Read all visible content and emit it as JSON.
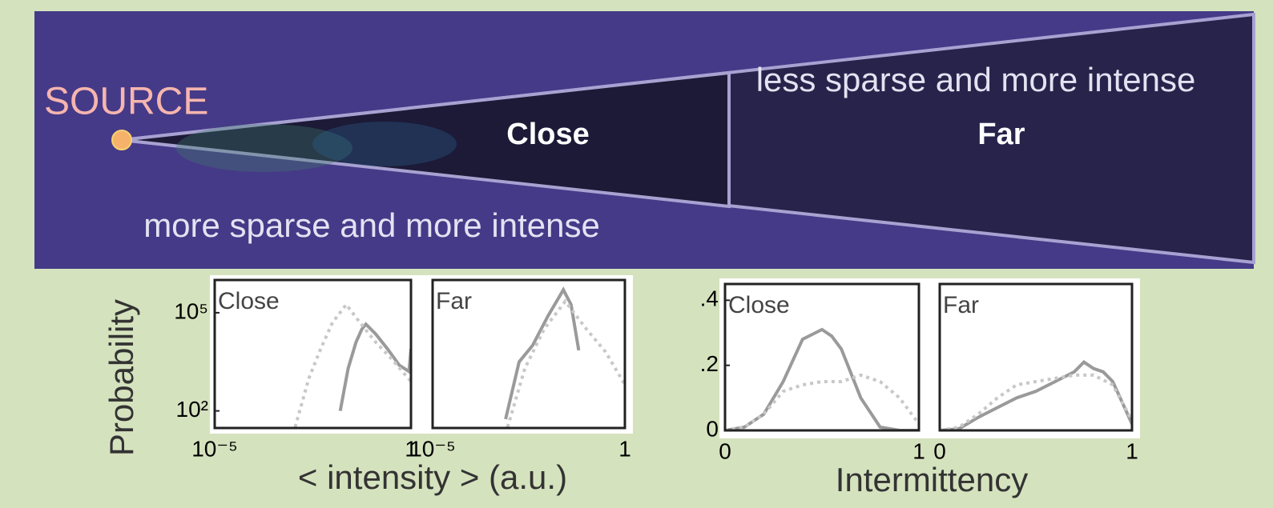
{
  "diagram": {
    "source": "SOURCE",
    "close": "Close",
    "far": "Far",
    "far_note": "less sparse and more intense",
    "near_note": "more sparse and more intense"
  },
  "chart_data": [
    {
      "type": "line",
      "title": "Close",
      "xlog": true,
      "ylog": true,
      "ylabel": "Probability",
      "xlabel": "< intensity > (a.u.)",
      "xlim": [
        1e-05,
        1
      ],
      "ylim": [
        30,
        1000000
      ],
      "xticks": [
        {
          "value": 1e-05,
          "label": "10⁻⁵"
        },
        1
      ],
      "yticks": [
        {
          "value": 100,
          "label": "10²"
        },
        {
          "value": 100000,
          "label": "10⁵"
        }
      ],
      "series": [
        {
          "color": "#9a9a9a",
          "dash": "solid",
          "x": [
            0.0158,
            0.0251,
            0.0398,
            0.0562,
            0.0708,
            0.126,
            0.251,
            0.501,
            0.891,
            1
          ],
          "values": [
            100,
            2000,
            12600,
            31600,
            44700,
            22400,
            7900,
            2500,
            1600,
            7900
          ]
        },
        {
          "color": "#c8c8c8",
          "dash": "dotted",
          "x": [
            0.00112,
            0.00251,
            0.00501,
            0.01,
            0.0224,
            0.0501,
            0.126,
            0.316,
            1
          ],
          "values": [
            32,
            1000,
            7900,
            50100,
            178000,
            50100,
            12600,
            3980,
            794
          ]
        }
      ]
    },
    {
      "type": "line",
      "title": "Far",
      "xlog": true,
      "ylog": true,
      "xlim": [
        1e-05,
        1
      ],
      "ylim": [
        30,
        1000000
      ],
      "xticks": [
        {
          "value": 1e-05,
          "label": "10⁻⁵"
        },
        1
      ],
      "series": [
        {
          "color": "#9a9a9a",
          "dash": "solid",
          "x": [
            0.00079,
            0.00178,
            0.00398,
            0.01,
            0.0251,
            0.0398,
            0.0631
          ],
          "values": [
            56,
            3160,
            10000,
            79400,
            501000,
            178000,
            7080
          ]
        },
        {
          "color": "#c8c8c8",
          "dash": "dotted",
          "x": [
            0.00089,
            0.00251,
            0.00794,
            0.0282,
            0.1,
            0.316,
            1
          ],
          "values": [
            32,
            2000,
            31600,
            224000,
            31600,
            6310,
            631
          ]
        }
      ]
    },
    {
      "type": "line",
      "title": "Close",
      "xlabel": "Intermittency",
      "xlim": [
        0,
        1
      ],
      "ylim": [
        0,
        0.45
      ],
      "xticks": [
        0,
        1
      ],
      "yticks": [
        0,
        {
          "value": 0.2,
          "label": ".2"
        },
        {
          "value": 0.4,
          "label": ".4"
        }
      ],
      "series": [
        {
          "color": "#9a9a9a",
          "dash": "solid",
          "x": [
            0,
            0.1,
            0.2,
            0.3,
            0.4,
            0.5,
            0.55,
            0.6,
            0.7,
            0.8,
            0.9,
            1
          ],
          "values": [
            0,
            0.01,
            0.05,
            0.15,
            0.28,
            0.31,
            0.29,
            0.25,
            0.1,
            0.01,
            0,
            0
          ]
        },
        {
          "color": "#c8c8c8",
          "dash": "dotted",
          "x": [
            0,
            0.1,
            0.2,
            0.3,
            0.4,
            0.5,
            0.6,
            0.7,
            0.8,
            0.9,
            1
          ],
          "values": [
            0,
            0.01,
            0.05,
            0.12,
            0.14,
            0.15,
            0.15,
            0.17,
            0.15,
            0.1,
            0.02
          ]
        }
      ]
    },
    {
      "type": "line",
      "title": "Far",
      "xlim": [
        0,
        1
      ],
      "ylim": [
        0,
        0.45
      ],
      "xticks": [
        0,
        1
      ],
      "series": [
        {
          "color": "#9a9a9a",
          "dash": "solid",
          "x": [
            0,
            0.1,
            0.2,
            0.3,
            0.4,
            0.5,
            0.6,
            0.7,
            0.75,
            0.8,
            0.85,
            0.9,
            1
          ],
          "values": [
            0,
            0.005,
            0.04,
            0.07,
            0.1,
            0.12,
            0.15,
            0.18,
            0.21,
            0.19,
            0.18,
            0.15,
            0.02
          ]
        },
        {
          "color": "#c8c8c8",
          "dash": "dotted",
          "x": [
            0,
            0.1,
            0.2,
            0.3,
            0.4,
            0.5,
            0.6,
            0.7,
            0.8,
            0.9,
            1
          ],
          "values": [
            0,
            0.01,
            0.05,
            0.1,
            0.14,
            0.15,
            0.16,
            0.17,
            0.17,
            0.14,
            0.03
          ]
        }
      ]
    }
  ]
}
